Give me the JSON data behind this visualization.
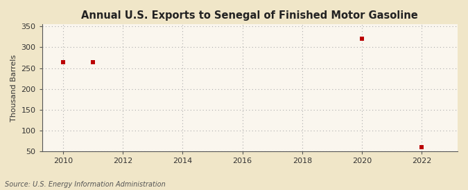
{
  "title": "Annual U.S. Exports to Senegal of Finished Motor Gasoline",
  "ylabel": "Thousand Barrels",
  "source": "Source: U.S. Energy Information Administration",
  "fig_background_color": "#f0e6c8",
  "plot_background_color": "#faf6ee",
  "data_x": [
    2010,
    2011,
    2020,
    2022
  ],
  "data_y": [
    265,
    265,
    320,
    60
  ],
  "marker_color": "#bb0000",
  "marker_size": 4,
  "xlim": [
    2009.3,
    2023.2
  ],
  "ylim": [
    50,
    355
  ],
  "xticks": [
    2010,
    2012,
    2014,
    2016,
    2018,
    2020,
    2022
  ],
  "yticks": [
    50,
    100,
    150,
    200,
    250,
    300,
    350
  ],
  "title_fontsize": 10.5,
  "label_fontsize": 8,
  "tick_fontsize": 8,
  "source_fontsize": 7
}
